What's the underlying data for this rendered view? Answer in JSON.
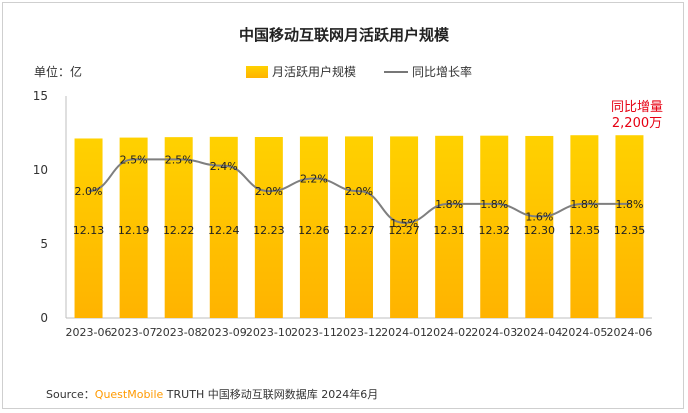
{
  "chart_data": {
    "type": "bar",
    "title": "中国移动互联网月活跃用户规模",
    "unit_label": "单位：亿",
    "categories": [
      "2023-06",
      "2023-07",
      "2023-08",
      "2023-09",
      "2023-10",
      "2023-11",
      "2023-12",
      "2024-01",
      "2024-02",
      "2024-03",
      "2024-04",
      "2024-05",
      "2024-06"
    ],
    "series": [
      {
        "name": "月活跃用户规模",
        "kind": "bar",
        "values": [
          12.13,
          12.19,
          12.22,
          12.24,
          12.23,
          12.26,
          12.27,
          12.27,
          12.31,
          12.32,
          12.3,
          12.35,
          12.35
        ]
      },
      {
        "name": "同比增长率",
        "kind": "line",
        "values": [
          2.0,
          2.5,
          2.5,
          2.4,
          2.0,
          2.2,
          2.0,
          1.5,
          1.8,
          1.8,
          1.6,
          1.8,
          1.8
        ]
      }
    ],
    "bar_labels": [
      "12.13",
      "12.19",
      "12.22",
      "12.24",
      "12.23",
      "12.26",
      "12.27",
      "12.27",
      "12.31",
      "12.32",
      "12.30",
      "12.35",
      "12.35"
    ],
    "line_labels": [
      "2.0%",
      "2.5%",
      "2.5%",
      "2.4%",
      "2.0%",
      "2.2%",
      "2.0%",
      "1.5%",
      "1.8%",
      "1.8%",
      "1.6%",
      "1.8%",
      "1.8%"
    ],
    "y_ticks": [
      0,
      5,
      10,
      15
    ],
    "ylim": [
      0,
      15
    ],
    "line_ylim": [
      0,
      3.5
    ],
    "callout": {
      "line1": "同比增量",
      "line2": "2,200万"
    },
    "colors": {
      "bar_top": "#ffd100",
      "bar_bottom": "#ffb300",
      "line": "#7f7f7f",
      "callout": "#e60012"
    }
  },
  "source": {
    "prefix": "Source：",
    "brand": "QuestMobile",
    "rest": " TRUTH 中国移动互联网数据库 2024年6月"
  }
}
